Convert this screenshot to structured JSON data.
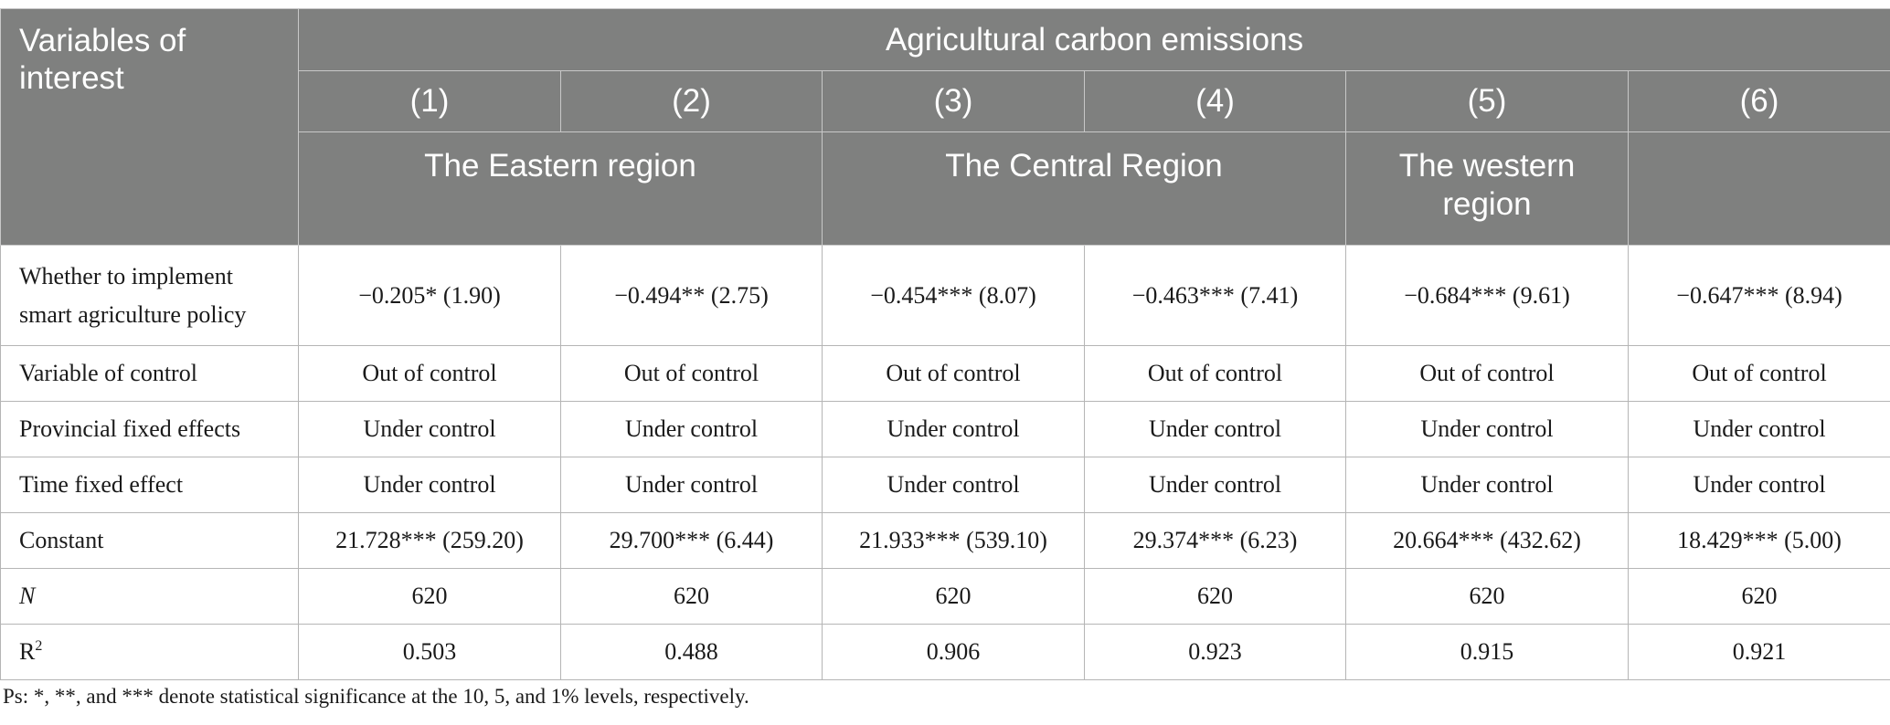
{
  "header": {
    "corner_label": "Variables of interest",
    "group_title": "Agricultural carbon emissions",
    "model_numbers": [
      "(1)",
      "(2)",
      "(3)",
      "(4)",
      "(5)",
      "(6)"
    ],
    "regions": [
      "The Eastern region",
      "The Central Region",
      "The western region",
      ""
    ]
  },
  "rows": [
    {
      "label": "Whether to implement smart agriculture policy",
      "cells": [
        "−0.205* (1.90)",
        "−0.494** (2.75)",
        "−0.454*** (8.07)",
        "−0.463*** (7.41)",
        "−0.684*** (9.61)",
        "−0.647*** (8.94)"
      ]
    },
    {
      "label": "Variable of control",
      "cells": [
        "Out of control",
        "Out of control",
        "Out of control",
        "Out of control",
        "Out of control",
        "Out of control"
      ]
    },
    {
      "label": "Provincial fixed effects",
      "cells": [
        "Under control",
        "Under control",
        "Under control",
        "Under control",
        "Under control",
        "Under control"
      ]
    },
    {
      "label": "Time fixed effect",
      "cells": [
        "Under control",
        "Under control",
        "Under control",
        "Under control",
        "Under control",
        "Under control"
      ]
    },
    {
      "label": "Constant",
      "cells": [
        "21.728*** (259.20)",
        "29.700*** (6.44)",
        "21.933*** (539.10)",
        "29.374*** (6.23)",
        "20.664*** (432.62)",
        "18.429*** (5.00)"
      ]
    },
    {
      "label": "N",
      "cells": [
        "620",
        "620",
        "620",
        "620",
        "620",
        "620"
      ]
    },
    {
      "label": "R",
      "label_sup": "2",
      "cells": [
        "0.503",
        "0.488",
        "0.906",
        "0.923",
        "0.915",
        "0.921"
      ]
    }
  ],
  "footnote": "Ps: *, **, and *** denote statistical significance at the 10, 5, and 1% levels, respectively."
}
